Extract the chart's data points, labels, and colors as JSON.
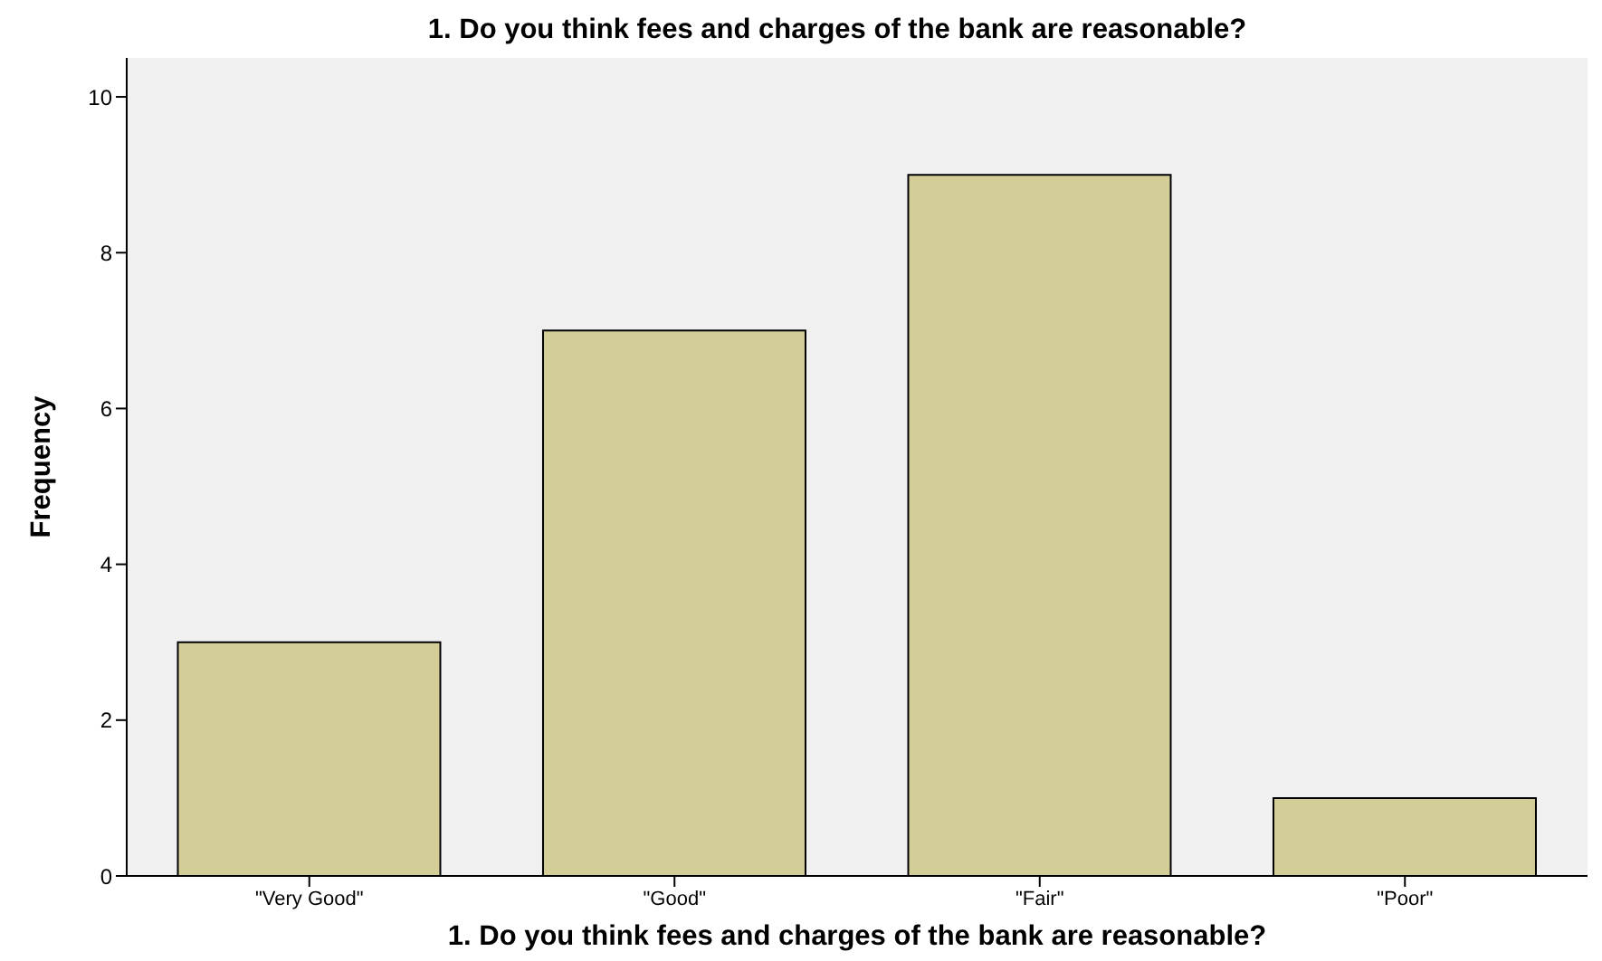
{
  "chart_data": {
    "type": "bar",
    "title": "1. Do you think fees and charges of the bank are reasonable?",
    "xlabel": "1. Do you think fees and charges of the bank are reasonable?",
    "ylabel": "Frequency",
    "categories": [
      "\"Very Good\"",
      "\"Good\"",
      "\"Fair\"",
      "\"Poor\""
    ],
    "values": [
      3,
      7,
      9,
      1
    ],
    "color": "#d3ce97",
    "ylim": [
      0,
      10.5
    ],
    "yticks": [
      0,
      2,
      4,
      6,
      8,
      10
    ],
    "grid": false
  }
}
